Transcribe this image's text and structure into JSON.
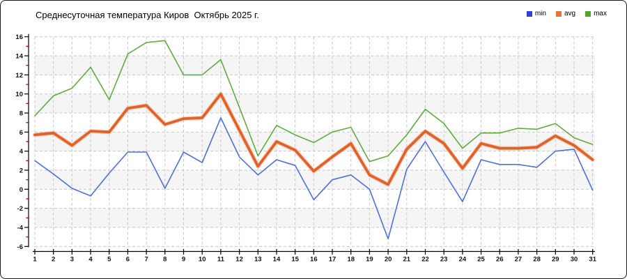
{
  "title": "Среднесуточная температура Киров  Октябрь 2025 г.",
  "legend": [
    {
      "label": "min",
      "color": "#2b3fdd"
    },
    {
      "label": "avg",
      "color": "#e8762d"
    },
    {
      "label": "max",
      "color": "#54a42b"
    }
  ],
  "chart_data": {
    "type": "line",
    "title": "Среднесуточная температура Киров  Октябрь 2025 г.",
    "xlabel": "",
    "ylabel": "",
    "x": [
      1,
      2,
      3,
      4,
      5,
      6,
      7,
      8,
      9,
      10,
      11,
      12,
      13,
      14,
      15,
      16,
      17,
      18,
      19,
      20,
      21,
      22,
      23,
      24,
      25,
      26,
      27,
      28,
      29,
      30,
      31
    ],
    "series": [
      {
        "name": "min",
        "color": "#4f6fd9",
        "width": 1.6,
        "values": [
          3.0,
          1.6,
          0.1,
          -0.7,
          1.7,
          3.9,
          3.9,
          0.1,
          3.9,
          2.8,
          7.5,
          3.4,
          1.5,
          3.1,
          2.5,
          -1.1,
          1.0,
          1.5,
          0.0,
          -5.2,
          2.1,
          5.0,
          1.8,
          -1.3,
          3.1,
          2.6,
          2.6,
          2.3,
          4.0,
          4.2,
          -0.1
        ]
      },
      {
        "name": "avg",
        "color": "#e0622a",
        "width": 3.8,
        "values": [
          5.7,
          5.9,
          4.6,
          6.1,
          6.0,
          8.5,
          8.8,
          6.8,
          7.4,
          7.5,
          10.0,
          6.2,
          2.4,
          5.0,
          4.1,
          1.9,
          3.4,
          4.8,
          1.5,
          0.5,
          4.2,
          6.1,
          4.8,
          2.2,
          4.8,
          4.3,
          4.3,
          4.4,
          5.6,
          4.6,
          3.1
        ]
      },
      {
        "name": "max",
        "color": "#61ab41",
        "width": 1.6,
        "values": [
          7.7,
          9.8,
          10.6,
          12.8,
          9.4,
          14.2,
          15.4,
          15.6,
          12.0,
          12.0,
          13.6,
          8.6,
          3.5,
          6.7,
          5.7,
          4.9,
          6.0,
          6.5,
          2.9,
          3.5,
          5.7,
          8.4,
          6.9,
          4.3,
          5.9,
          5.9,
          6.4,
          6.3,
          6.9,
          5.4,
          4.7
        ]
      }
    ],
    "ylim": [
      -6,
      16
    ],
    "ytick_step": 2,
    "grid": true,
    "legend_position": "top-right",
    "band_color": "#f5f5f5",
    "grid_color": "#c8c8c8",
    "axis_color": "#000000",
    "minor_tick_color": "#cc0000",
    "tick_label_color": "#111111"
  }
}
